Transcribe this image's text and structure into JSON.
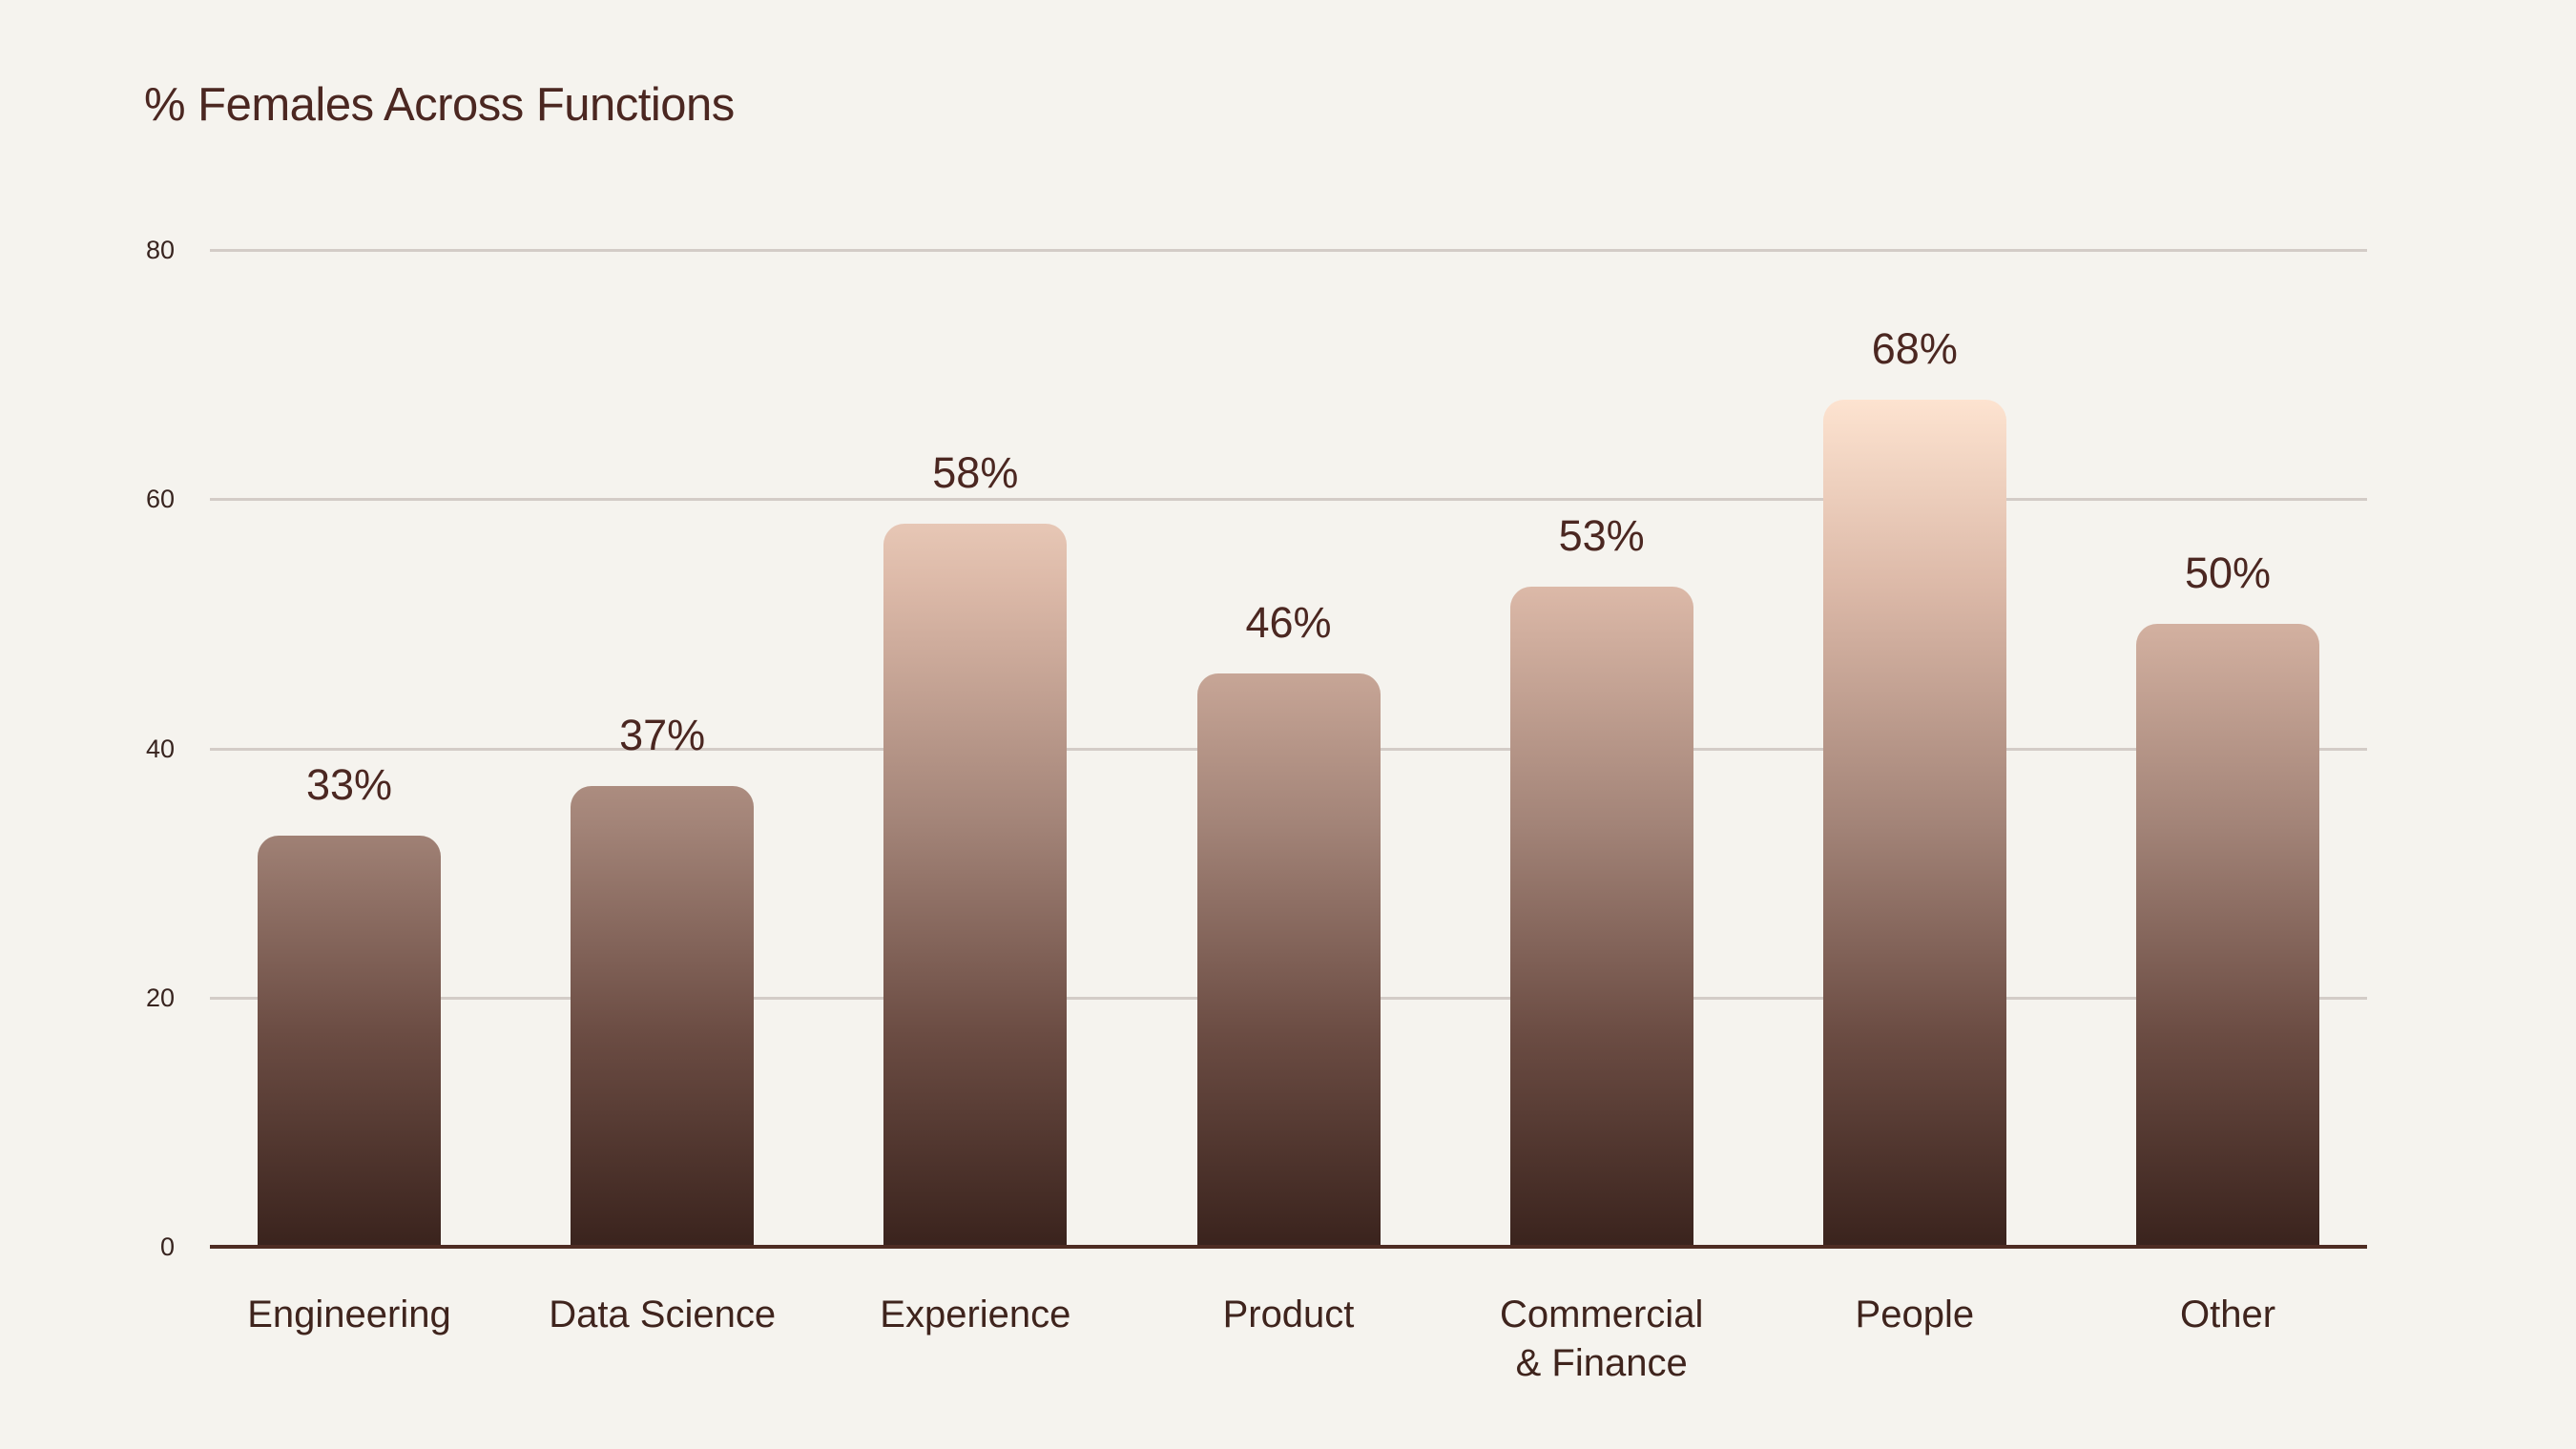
{
  "chart_data": {
    "type": "bar",
    "title": "% Females Across Functions",
    "categories": [
      {
        "label": "Engineering",
        "lines": [
          "Engineering"
        ]
      },
      {
        "label": "Data Science",
        "lines": [
          "Data Science"
        ]
      },
      {
        "label": "Experience",
        "lines": [
          "Experience"
        ]
      },
      {
        "label": "Product",
        "lines": [
          "Product"
        ]
      },
      {
        "label": "Commercial & Finance",
        "lines": [
          "Commercial",
          "& Finance"
        ]
      },
      {
        "label": "People",
        "lines": [
          "People"
        ]
      },
      {
        "label": "Other",
        "lines": [
          "Other"
        ]
      }
    ],
    "values": [
      33,
      37,
      58,
      46,
      53,
      68,
      50
    ],
    "value_labels": [
      "33%",
      "37%",
      "58%",
      "46%",
      "53%",
      "68%",
      "50%"
    ],
    "xlabel": "",
    "ylabel": "",
    "ylim": [
      0,
      80
    ],
    "yticks": [
      0,
      20,
      40,
      60,
      80
    ],
    "grid": "horizontal",
    "legend": "none",
    "colors": {
      "background": "#f5f3ee",
      "title_text": "#4b2721",
      "axis_tick_text": "#38241f",
      "value_label_text": "#4b2721",
      "category_label_text": "#3f241d",
      "gridline": "#d3ccc7",
      "baseline": "#4e2c23",
      "bar_gradient_bottom_to_top": [
        "#3a231d",
        "#6b4c43",
        "#a38478",
        "#dcb9a8",
        "#fde3d0"
      ],
      "bar_gradient_stop_percents": [
        0,
        25,
        50,
        78,
        100
      ]
    }
  }
}
